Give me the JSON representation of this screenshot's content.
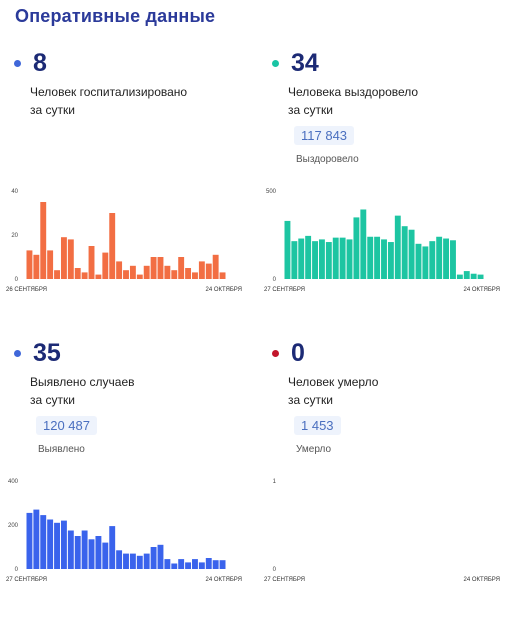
{
  "page": {
    "title": "Оперативные данные"
  },
  "panels": [
    {
      "value": "8",
      "dot_color": "#3f67d9",
      "bar_color": "#f26e43",
      "line1": "Человек госпитализировано",
      "line2": "за сутки",
      "has_pill": false
    },
    {
      "value": "34",
      "dot_color": "#19c4a4",
      "bar_color": "#1dc5a2",
      "line1": "Человека выздоровело",
      "line2": "за сутки",
      "has_pill": true,
      "pill_value": "117 843",
      "pill_label": "Выздоровело"
    },
    {
      "value": "35",
      "dot_color": "#3f67d9",
      "bar_color": "#3a63ec",
      "line1": "Выявлено случаев",
      "line2": "за сутки",
      "has_pill": true,
      "pill_value": "120 487",
      "pill_label": "Выявлено"
    },
    {
      "value": "0",
      "dot_color": "#c2152b",
      "bar_color": "#c2152b",
      "line1": "Человек умерло",
      "line2": "за сутки",
      "has_pill": true,
      "pill_value": "1 453",
      "pill_label": "Умерло"
    }
  ],
  "chart_data": [
    {
      "type": "bar",
      "title": "",
      "ylim": [
        0,
        40
      ],
      "yticks": [
        "0",
        "20",
        "40"
      ],
      "x_start_label": "26 СЕНТЯБРЯ",
      "x_end_label": "24 ОКТЯБРЯ",
      "values": [
        13,
        11,
        35,
        13,
        4,
        19,
        18,
        5,
        3,
        15,
        2,
        12,
        30,
        8,
        4,
        6,
        2,
        6,
        10,
        10,
        6,
        4,
        10,
        5,
        3,
        8,
        7,
        11,
        3
      ]
    },
    {
      "type": "bar",
      "title": "",
      "ylim": [
        0,
        500
      ],
      "yticks": [
        "0",
        "500"
      ],
      "x_start_label": "27 СЕНТЯБРЯ",
      "x_end_label": "24 ОКТЯБРЯ",
      "values": [
        330,
        215,
        230,
        245,
        215,
        225,
        210,
        235,
        235,
        225,
        350,
        395,
        240,
        240,
        225,
        210,
        360,
        300,
        280,
        200,
        185,
        215,
        240,
        230,
        220,
        25,
        45,
        30,
        25
      ]
    },
    {
      "type": "bar",
      "title": "",
      "ylim": [
        0,
        400
      ],
      "yticks": [
        "0",
        "200",
        "400"
      ],
      "x_start_label": "27 СЕНТЯБРЯ",
      "x_end_label": "24 ОКТЯБРЯ",
      "values": [
        255,
        270,
        245,
        225,
        210,
        220,
        175,
        150,
        175,
        135,
        150,
        120,
        195,
        85,
        70,
        70,
        60,
        70,
        100,
        110,
        45,
        25,
        45,
        30,
        45,
        30,
        50,
        40,
        40
      ]
    },
    {
      "type": "bar",
      "title": "",
      "ylim": [
        0,
        1
      ],
      "yticks": [
        "0",
        "1"
      ],
      "x_start_label": "27 СЕНТЯБРЯ",
      "x_end_label": "24 ОКТЯБРЯ",
      "values": []
    }
  ]
}
